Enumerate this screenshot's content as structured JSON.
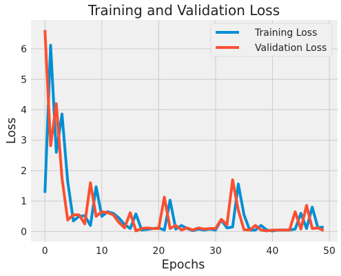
{
  "chart_data": {
    "type": "line",
    "title": "Training and Validation Loss",
    "xlabel": "Epochs",
    "ylabel": "Loss",
    "xlim": [
      -2.45,
      51.45
    ],
    "ylim": [
      -0.33,
      6.95
    ],
    "xticks": [
      0,
      10,
      20,
      30,
      40,
      50
    ],
    "yticks": [
      0,
      1,
      2,
      3,
      4,
      5,
      6
    ],
    "grid": true,
    "legend_position": "top-right",
    "x": [
      0,
      1,
      2,
      3,
      4,
      5,
      6,
      7,
      8,
      9,
      10,
      11,
      12,
      13,
      14,
      15,
      16,
      17,
      18,
      19,
      20,
      21,
      22,
      23,
      24,
      25,
      26,
      27,
      28,
      29,
      30,
      31,
      32,
      33,
      34,
      35,
      36,
      37,
      38,
      39,
      40,
      41,
      42,
      43,
      44,
      45,
      46,
      47,
      48,
      49
    ],
    "series": [
      {
        "name": "Training Loss",
        "color": "#008FD5",
        "values": [
          1.27,
          6.12,
          2.6,
          3.86,
          1.65,
          0.35,
          0.5,
          0.52,
          0.2,
          1.47,
          0.5,
          0.65,
          0.6,
          0.45,
          0.23,
          0.1,
          0.58,
          0.05,
          0.07,
          0.1,
          0.12,
          0.05,
          1.03,
          0.08,
          0.2,
          0.1,
          0.03,
          0.08,
          0.05,
          0.08,
          0.05,
          0.38,
          0.12,
          0.15,
          1.56,
          0.55,
          0.05,
          0.05,
          0.2,
          0.05,
          0.02,
          0.05,
          0.05,
          0.05,
          0.08,
          0.6,
          0.1,
          0.8,
          0.12,
          0.15
        ]
      },
      {
        "name": "Validation Loss",
        "color": "#FC4F30",
        "values": [
          6.62,
          2.82,
          4.2,
          1.75,
          0.38,
          0.55,
          0.55,
          0.25,
          1.6,
          0.5,
          0.65,
          0.62,
          0.55,
          0.3,
          0.12,
          0.62,
          0.02,
          0.1,
          0.12,
          0.1,
          0.1,
          1.13,
          0.1,
          0.2,
          0.05,
          0.12,
          0.05,
          0.12,
          0.08,
          0.1,
          0.1,
          0.4,
          0.22,
          1.7,
          0.7,
          0.06,
          0.05,
          0.2,
          0.05,
          0.02,
          0.05,
          0.05,
          0.05,
          0.05,
          0.65,
          0.08,
          0.86,
          0.1,
          0.12,
          0.03
        ]
      }
    ]
  }
}
